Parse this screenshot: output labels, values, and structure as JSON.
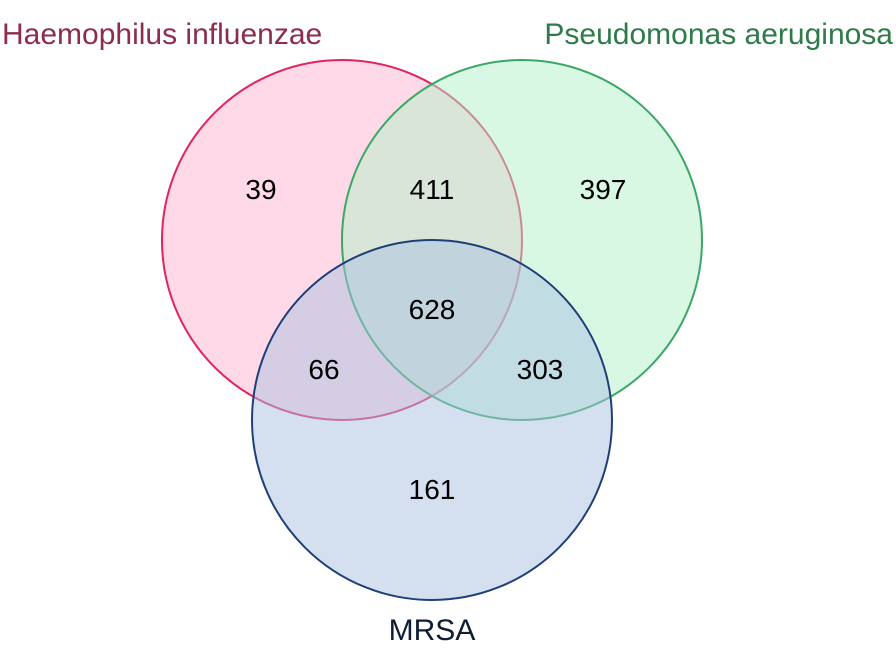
{
  "venn": {
    "sets": [
      {
        "id": "a",
        "label": "Haemophilus influenzae",
        "fill": "#ffb3cf",
        "stroke": "#e0245e",
        "label_color": "#8e2c50"
      },
      {
        "id": "b",
        "label": "Pseudomonas aeruginosa",
        "fill": "#b3f2c9",
        "stroke": "#3aa864",
        "label_color": "#2e7a4a"
      },
      {
        "id": "c",
        "label": "MRSA",
        "fill": "#a9c2e2",
        "stroke": "#1e3f78",
        "label_color": "#0f1d33"
      }
    ],
    "regions": {
      "a_only": "39",
      "ab": "411",
      "b_only": "397",
      "abc": "628",
      "ac": "66",
      "bc": "303",
      "c_only": "161"
    }
  }
}
